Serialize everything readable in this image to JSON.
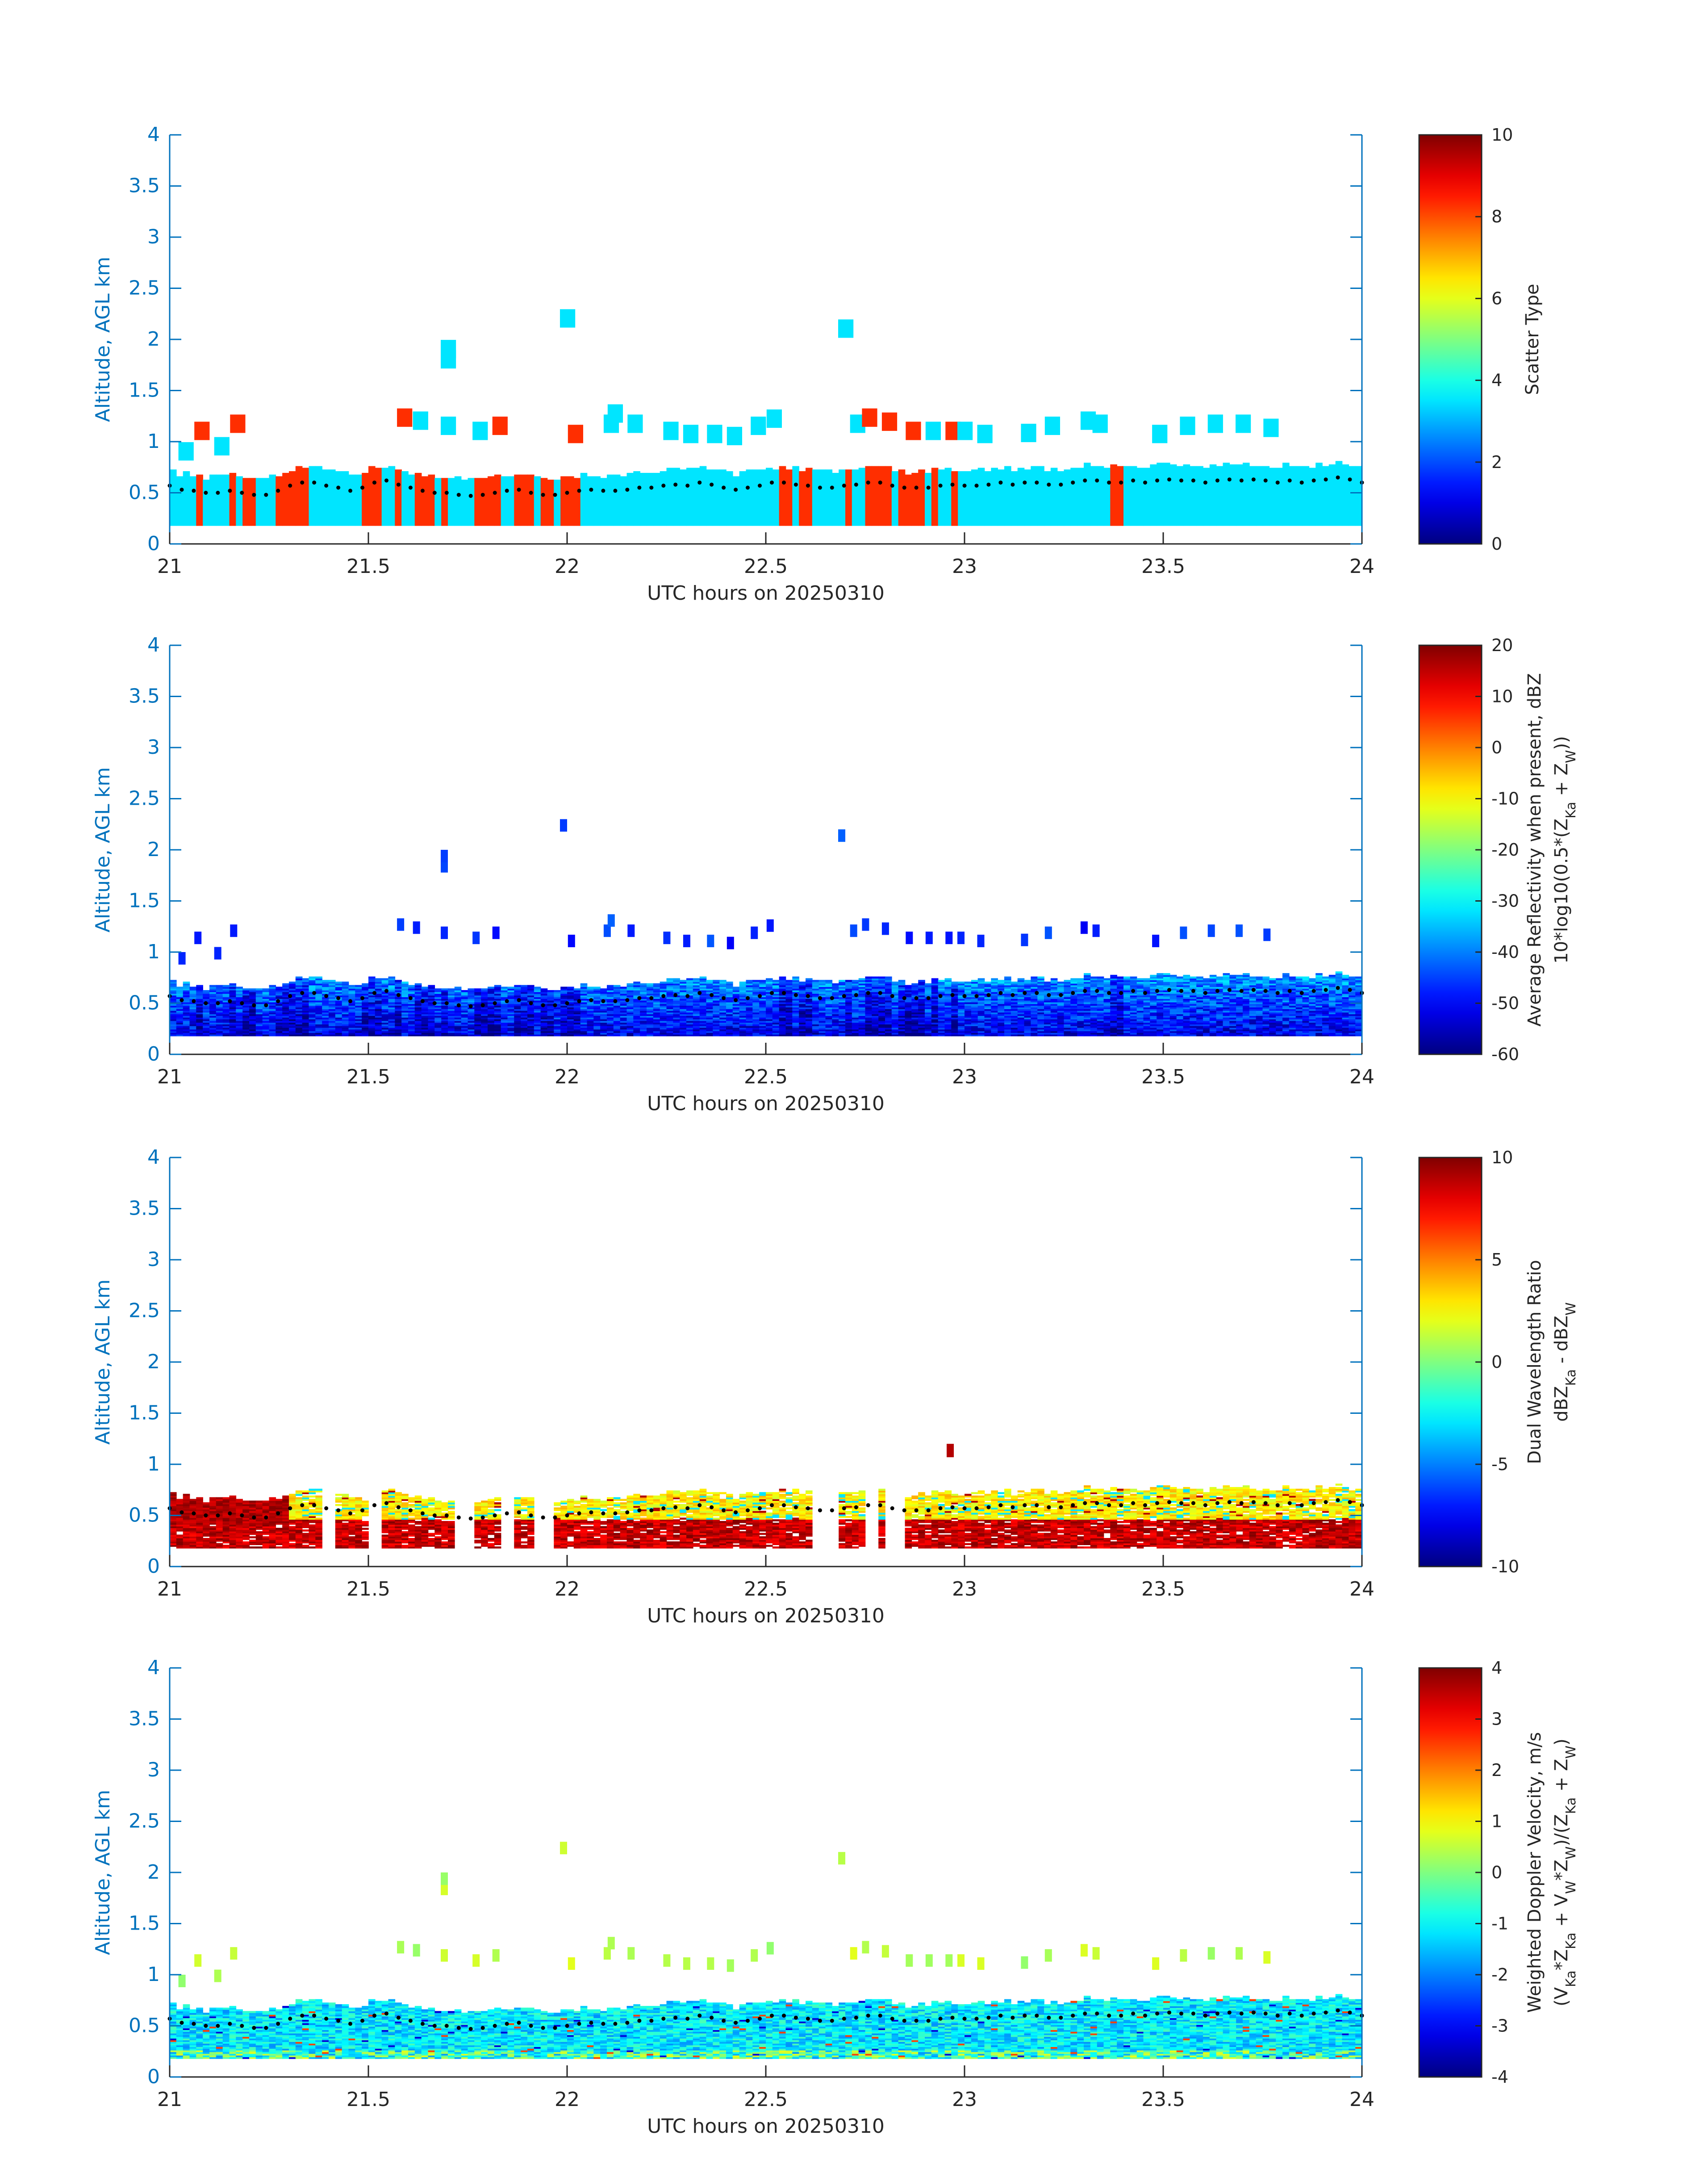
{
  "figure": {
    "axis_color": "#0072bd",
    "text_color": "#262626"
  },
  "chart_data": [
    {
      "type": "heatmap",
      "panel": "scatter-type",
      "xlabel": "UTC hours on 20250310",
      "ylabel": "Altitude, AGL km",
      "xlim": [
        21,
        24
      ],
      "ylim": [
        0,
        4
      ],
      "xticks": [
        "21",
        "21.5",
        "22",
        "22.5",
        "23",
        "23.5",
        "24"
      ],
      "yticks": [
        "0",
        "0.5",
        "1",
        "1.5",
        "2",
        "2.5",
        "3",
        "3.5",
        "4"
      ],
      "colorbar": {
        "label_lines": [
          "Scatter Type"
        ],
        "clim": [
          0,
          10
        ],
        "ticks": [
          "0",
          "2",
          "4",
          "6",
          "8",
          "10"
        ]
      },
      "grid": false,
      "description_values": "Two classes: cloud (value ~3.5, cyan) filling 0.2-0.75 km; precipitation (value ~8.3, red-orange) columns between 21.0-22.05 h and 22.55-23.0 h and 23.38 h; sparse elevated cyan cells 0.9-1.35 km; isolated cells near 1.8-2.0 km (21.7 h), 2.25 km (22.0 h), 2.15 km (22.7 h).",
      "cloud_value": 3.5,
      "precip_value": 8.3,
      "precip_segments_h": [
        [
          21.06,
          21.08
        ],
        [
          21.15,
          21.17
        ],
        [
          21.19,
          21.21
        ],
        [
          21.26,
          21.35
        ],
        [
          21.48,
          21.53
        ],
        [
          21.57,
          21.58
        ],
        [
          21.61,
          21.66
        ],
        [
          21.69,
          21.7
        ],
        [
          21.76,
          21.83
        ],
        [
          21.86,
          21.91
        ],
        [
          21.93,
          21.96
        ],
        [
          21.99,
          22.04
        ],
        [
          22.54,
          22.56
        ],
        [
          22.58,
          22.62
        ],
        [
          22.66,
          22.67
        ],
        [
          22.7,
          22.72
        ],
        [
          22.75,
          22.81
        ],
        [
          22.83,
          22.9
        ],
        [
          22.92,
          22.94
        ],
        [
          22.96,
          22.98
        ],
        [
          23.37,
          23.4
        ]
      ],
      "elevated_cells": [
        {
          "x": 21.03,
          "y": 0.95,
          "v": 3.5
        },
        {
          "x": 21.07,
          "y": 1.15,
          "v": 8.3
        },
        {
          "x": 21.12,
          "y": 1.0,
          "v": 3.5
        },
        {
          "x": 21.16,
          "y": 1.22,
          "v": 8.3
        },
        {
          "x": 21.58,
          "y": 1.28,
          "v": 8.3
        },
        {
          "x": 21.62,
          "y": 1.25,
          "v": 3.5
        },
        {
          "x": 21.69,
          "y": 1.2,
          "v": 3.5
        },
        {
          "x": 21.69,
          "y": 1.85,
          "v": 3.5
        },
        {
          "x": 21.69,
          "y": 1.95,
          "v": 3.5
        },
        {
          "x": 21.77,
          "y": 1.15,
          "v": 3.5
        },
        {
          "x": 21.82,
          "y": 1.2,
          "v": 8.3
        },
        {
          "x": 21.99,
          "y": 2.25,
          "v": 3.5
        },
        {
          "x": 22.01,
          "y": 1.12,
          "v": 8.3
        },
        {
          "x": 22.1,
          "y": 1.22,
          "v": 3.5
        },
        {
          "x": 22.11,
          "y": 1.32,
          "v": 3.5
        },
        {
          "x": 22.16,
          "y": 1.22,
          "v": 3.5
        },
        {
          "x": 22.25,
          "y": 1.15,
          "v": 3.5
        },
        {
          "x": 22.3,
          "y": 1.12,
          "v": 3.5
        },
        {
          "x": 22.36,
          "y": 1.12,
          "v": 3.5
        },
        {
          "x": 22.41,
          "y": 1.1,
          "v": 3.5
        },
        {
          "x": 22.47,
          "y": 1.2,
          "v": 3.5
        },
        {
          "x": 22.51,
          "y": 1.27,
          "v": 3.5
        },
        {
          "x": 22.69,
          "y": 2.15,
          "v": 3.5
        },
        {
          "x": 22.72,
          "y": 1.22,
          "v": 3.5
        },
        {
          "x": 22.75,
          "y": 1.28,
          "v": 8.3
        },
        {
          "x": 22.8,
          "y": 1.24,
          "v": 8.3
        },
        {
          "x": 22.86,
          "y": 1.15,
          "v": 8.3
        },
        {
          "x": 22.91,
          "y": 1.15,
          "v": 3.5
        },
        {
          "x": 22.96,
          "y": 1.15,
          "v": 8.3
        },
        {
          "x": 22.99,
          "y": 1.15,
          "v": 3.5
        },
        {
          "x": 23.04,
          "y": 1.12,
          "v": 3.5
        },
        {
          "x": 23.15,
          "y": 1.13,
          "v": 3.5
        },
        {
          "x": 23.21,
          "y": 1.2,
          "v": 3.5
        },
        {
          "x": 23.3,
          "y": 1.25,
          "v": 3.5
        },
        {
          "x": 23.33,
          "y": 1.22,
          "v": 3.5
        },
        {
          "x": 23.48,
          "y": 1.12,
          "v": 3.5
        },
        {
          "x": 23.55,
          "y": 1.2,
          "v": 3.5
        },
        {
          "x": 23.62,
          "y": 1.22,
          "v": 3.5
        },
        {
          "x": 23.69,
          "y": 1.22,
          "v": 3.5
        },
        {
          "x": 23.76,
          "y": 1.18,
          "v": 3.5
        }
      ]
    },
    {
      "type": "heatmap",
      "panel": "reflectivity",
      "xlabel": "UTC hours on 20250310",
      "ylabel": "Altitude, AGL km",
      "xlim": [
        21,
        24
      ],
      "ylim": [
        0,
        4
      ],
      "xticks": [
        "21",
        "21.5",
        "22",
        "22.5",
        "23",
        "23.5",
        "24"
      ],
      "yticks": [
        "0",
        "0.5",
        "1",
        "1.5",
        "2",
        "2.5",
        "3",
        "3.5",
        "4"
      ],
      "colorbar": {
        "label_lines": [
          "Average Reflectivity when present, dBZ",
          "10*log10(0.5*(Z",
          "Ka",
          " + Z",
          "W",
          "))"
        ],
        "clim": [
          -60,
          20
        ],
        "ticks": [
          "-60",
          "-50",
          "-40",
          "-30",
          "-20",
          "-10",
          "0",
          "10",
          "20"
        ]
      },
      "grid": false,
      "layer_range_dbz": [
        -60,
        -35
      ],
      "elevated_range_dbz": [
        -55,
        -40
      ]
    },
    {
      "type": "heatmap",
      "panel": "dual-wavelength-ratio",
      "xlabel": "UTC hours on 20250310",
      "ylabel": "Altitude, AGL km",
      "xlim": [
        21,
        24
      ],
      "ylim": [
        0,
        4
      ],
      "xticks": [
        "21",
        "21.5",
        "22",
        "22.5",
        "23",
        "23.5",
        "24"
      ],
      "yticks": [
        "0",
        "0.5",
        "1",
        "1.5",
        "2",
        "2.5",
        "3",
        "3.5",
        "4"
      ],
      "colorbar": {
        "label_lines": [
          "Dual Wavelength Ratio",
          "dBZ",
          "Ka",
          " - dBZ",
          "W"
        ],
        "clim": [
          -10,
          10
        ],
        "ticks": [
          "-10",
          "-5",
          "0",
          "5",
          "10"
        ]
      },
      "grid": false,
      "lower_layer_db": [
        7,
        10
      ],
      "upper_layer_db": [
        1,
        4
      ],
      "elevated_cell": {
        "x": 22.96,
        "y": 1.15,
        "v": 9
      }
    },
    {
      "type": "heatmap",
      "panel": "doppler-velocity",
      "xlabel": "UTC hours on 20250310",
      "ylabel": "Altitude, AGL km",
      "xlim": [
        21,
        24
      ],
      "ylim": [
        0,
        4
      ],
      "xticks": [
        "21",
        "21.5",
        "22",
        "22.5",
        "23",
        "23.5",
        "24"
      ],
      "yticks": [
        "0",
        "0.5",
        "1",
        "1.5",
        "2",
        "2.5",
        "3",
        "3.5",
        "4"
      ],
      "colorbar": {
        "label_lines": [
          "Weighted Doppler Velocity, m/s",
          "(V",
          "Ka",
          "*Z",
          "Ka",
          " + V",
          "W",
          "*Z",
          "W",
          ")/(Z",
          "Ka",
          " + Z",
          "W",
          ")"
        ],
        "clim": [
          -4,
          4
        ],
        "ticks": [
          "-4",
          "-3",
          "-2",
          "-1",
          "0",
          "1",
          "2",
          "3",
          "4"
        ]
      },
      "grid": false,
      "layer_range_ms": [
        -2.2,
        -0.6
      ],
      "elevated_range_ms": [
        0.0,
        0.8
      ]
    }
  ],
  "boundary_layer_top_km": [
    0.57,
    0.53,
    0.52,
    0.5,
    0.5,
    0.52,
    0.5,
    0.48,
    0.48,
    0.52,
    0.57,
    0.6,
    0.6,
    0.57,
    0.55,
    0.52,
    0.55,
    0.6,
    0.62,
    0.58,
    0.55,
    0.52,
    0.5,
    0.5,
    0.48,
    0.47,
    0.48,
    0.5,
    0.52,
    0.53,
    0.5,
    0.48,
    0.48,
    0.5,
    0.52,
    0.53,
    0.52,
    0.52,
    0.53,
    0.55,
    0.55,
    0.57,
    0.58,
    0.57,
    0.6,
    0.58,
    0.55,
    0.53,
    0.55,
    0.57,
    0.6,
    0.6,
    0.58,
    0.57,
    0.55,
    0.55,
    0.57,
    0.58,
    0.6,
    0.6,
    0.57,
    0.55,
    0.55,
    0.55,
    0.57,
    0.58,
    0.57,
    0.57,
    0.58,
    0.6,
    0.58,
    0.6,
    0.6,
    0.58,
    0.58,
    0.6,
    0.62,
    0.62,
    0.6,
    0.6,
    0.62,
    0.6,
    0.62,
    0.63,
    0.62,
    0.62,
    0.6,
    0.62,
    0.63,
    0.62,
    0.63,
    0.62,
    0.6,
    0.62,
    0.6,
    0.62,
    0.63,
    0.65,
    0.63,
    0.6
  ]
}
